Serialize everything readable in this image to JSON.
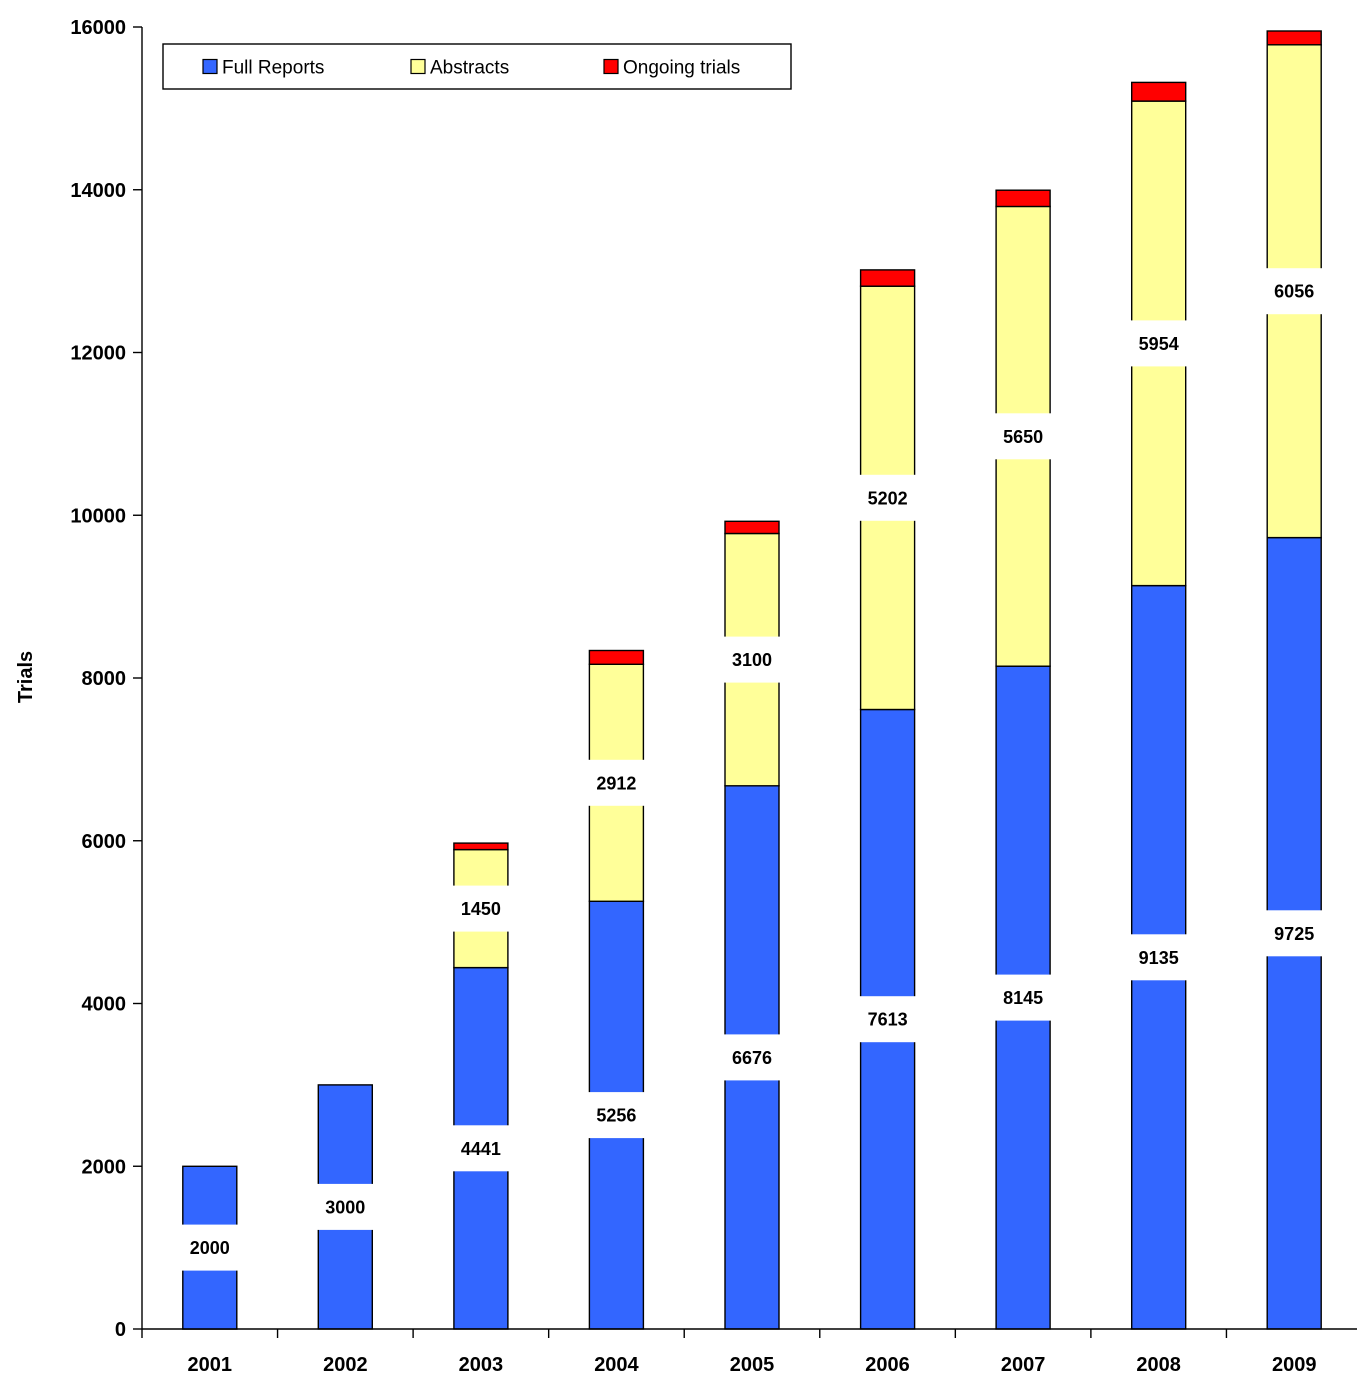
{
  "chart_data": {
    "type": "bar",
    "stacked": true,
    "categories": [
      "2001",
      "2002",
      "2003",
      "2004",
      "2005",
      "2006",
      "2007",
      "2008",
      "2009"
    ],
    "series": [
      {
        "name": "Full Reports",
        "color": "#3366ff",
        "values": [
          2000,
          3000,
          4441,
          5256,
          6676,
          7613,
          8145,
          9135,
          9725
        ]
      },
      {
        "name": "Abstracts",
        "color": "#ffff99",
        "values": [
          0,
          0,
          1450,
          2912,
          3100,
          5202,
          5650,
          5954,
          6056
        ]
      },
      {
        "name": "Ongoing trials",
        "color": "#ff0000",
        "values": [
          0,
          0,
          80,
          170,
          150,
          200,
          200,
          230,
          170
        ]
      }
    ],
    "data_labels": [
      {
        "category": "2001",
        "series": "Full Reports",
        "text": "2000"
      },
      {
        "category": "2002",
        "series": "Full Reports",
        "text": "3000"
      },
      {
        "category": "2003",
        "series": "Full Reports",
        "text": "4441"
      },
      {
        "category": "2004",
        "series": "Full Reports",
        "text": "5256"
      },
      {
        "category": "2005",
        "series": "Full Reports",
        "text": "6676"
      },
      {
        "category": "2006",
        "series": "Full Reports",
        "text": "7613"
      },
      {
        "category": "2007",
        "series": "Full Reports",
        "text": "8145"
      },
      {
        "category": "2008",
        "series": "Full Reports",
        "text": "9135"
      },
      {
        "category": "2009",
        "series": "Full Reports",
        "text": "9725"
      },
      {
        "category": "2003",
        "series": "Abstracts",
        "text": "1450"
      },
      {
        "category": "2004",
        "series": "Abstracts",
        "text": "2912"
      },
      {
        "category": "2005",
        "series": "Abstracts",
        "text": "3100"
      },
      {
        "category": "2006",
        "series": "Abstracts",
        "text": "5202"
      },
      {
        "category": "2007",
        "series": "Abstracts",
        "text": "5650"
      },
      {
        "category": "2008",
        "series": "Abstracts",
        "text": "5954"
      },
      {
        "category": "2009",
        "series": "Abstracts",
        "text": "6056"
      }
    ],
    "title": "",
    "xlabel": "",
    "ylabel": "Trials",
    "ylim": [
      0,
      16000
    ],
    "yticks": [
      0,
      2000,
      4000,
      6000,
      8000,
      10000,
      12000,
      14000,
      16000
    ],
    "grid": false,
    "legend_position": "top-left"
  }
}
